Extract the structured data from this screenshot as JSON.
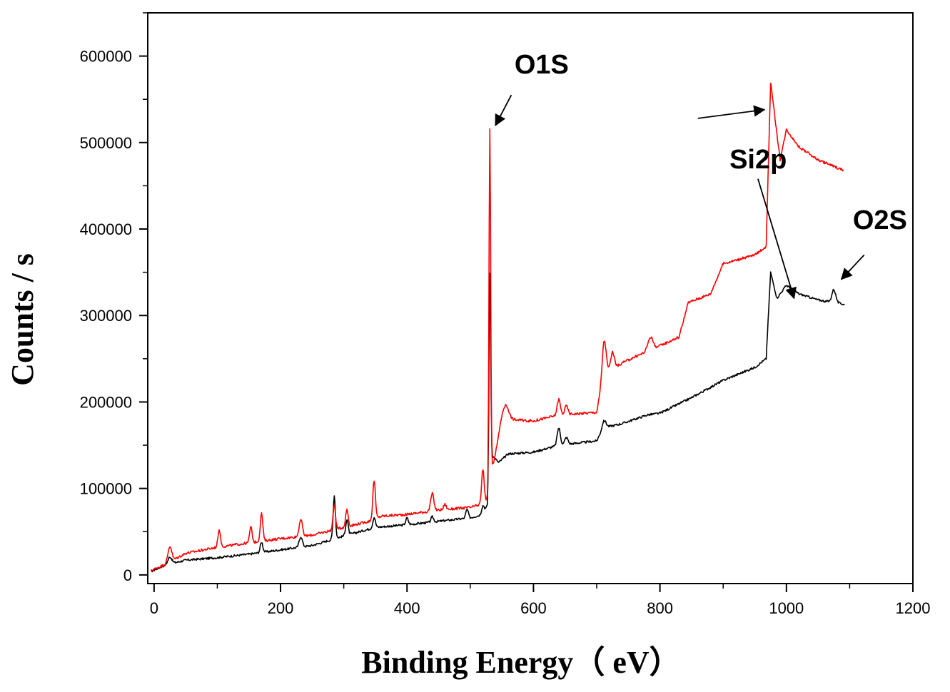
{
  "chart_data": {
    "type": "line",
    "title": "",
    "xlabel": "Binding Energy（  eV）",
    "ylabel": "Counts / s",
    "xlim": [
      -10,
      1200
    ],
    "ylim": [
      -10000,
      650000
    ],
    "xticks": [
      0,
      200,
      400,
      600,
      800,
      1000,
      1200
    ],
    "xtick_labels": [
      "0",
      "200",
      "400",
      "600",
      "800",
      "1000",
      "1200"
    ],
    "yticks": [
      0,
      100000,
      200000,
      300000,
      400000,
      500000,
      600000
    ],
    "ytick_labels": [
      "0",
      "100000",
      "200000",
      "300000",
      "400000",
      "500000",
      "600000"
    ],
    "grid": false,
    "colors": {
      "series_black": "#000000",
      "series_red": "#ff0000",
      "axis": "#000000"
    },
    "series": [
      {
        "name": "black",
        "color": "#000000",
        "baseline": [
          [
            -5,
            4000
          ],
          [
            20,
            12000
          ],
          [
            50,
            17000
          ],
          [
            100,
            20000
          ],
          [
            150,
            24000
          ],
          [
            200,
            29000
          ],
          [
            250,
            34000
          ],
          [
            300,
            45000
          ],
          [
            350,
            55000
          ],
          [
            400,
            58000
          ],
          [
            450,
            62000
          ],
          [
            500,
            66000
          ],
          [
            520,
            70000
          ],
          [
            527,
            80000
          ],
          [
            532,
            140000
          ],
          [
            545,
            130000
          ],
          [
            560,
            140000
          ],
          [
            600,
            142000
          ],
          [
            640,
            150000
          ],
          [
            700,
            155000
          ],
          [
            710,
            170000
          ],
          [
            740,
            175000
          ],
          [
            780,
            185000
          ],
          [
            800,
            187000
          ],
          [
            850,
            205000
          ],
          [
            900,
            225000
          ],
          [
            950,
            240000
          ],
          [
            968,
            250000
          ],
          [
            975,
            350000
          ],
          [
            985,
            320000
          ],
          [
            1000,
            335000
          ],
          [
            1020,
            325000
          ],
          [
            1050,
            318000
          ],
          [
            1092,
            313000
          ]
        ],
        "peaks": [
          [
            25,
            8000,
            3
          ],
          [
            170,
            12000,
            2
          ],
          [
            232,
            12000,
            2.5
          ],
          [
            285,
            50000,
            1.8
          ],
          [
            305,
            18000,
            2
          ],
          [
            348,
            12000,
            2
          ],
          [
            400,
            8000,
            2
          ],
          [
            440,
            6000,
            2
          ],
          [
            495,
            10000,
            2
          ],
          [
            520,
            10000,
            2
          ],
          [
            531,
            220000,
            1.3
          ],
          [
            640,
            20000,
            2.5
          ],
          [
            652,
            8000,
            2.5
          ],
          [
            712,
            8000,
            3
          ],
          [
            1075,
            15000,
            3
          ]
        ],
        "noise": 2500
      },
      {
        "name": "red",
        "color": "#ff0000",
        "baseline": [
          [
            -5,
            5000
          ],
          [
            20,
            13000
          ],
          [
            50,
            25000
          ],
          [
            100,
            32000
          ],
          [
            150,
            37000
          ],
          [
            200,
            42000
          ],
          [
            250,
            46000
          ],
          [
            300,
            55000
          ],
          [
            340,
            62000
          ],
          [
            360,
            68000
          ],
          [
            400,
            70000
          ],
          [
            450,
            75000
          ],
          [
            500,
            78000
          ],
          [
            520,
            82000
          ],
          [
            527,
            88000
          ],
          [
            534,
            120000
          ],
          [
            548,
            170000
          ],
          [
            560,
            180000
          ],
          [
            600,
            178000
          ],
          [
            640,
            185000
          ],
          [
            700,
            188000
          ],
          [
            710,
            230000
          ],
          [
            740,
            245000
          ],
          [
            760,
            252000
          ],
          [
            800,
            265000
          ],
          [
            830,
            275000
          ],
          [
            845,
            315000
          ],
          [
            880,
            325000
          ],
          [
            900,
            360000
          ],
          [
            950,
            370000
          ],
          [
            968,
            380000
          ],
          [
            975,
            570000
          ],
          [
            990,
            480000
          ],
          [
            1000,
            515000
          ],
          [
            1020,
            495000
          ],
          [
            1050,
            480000
          ],
          [
            1090,
            468000
          ]
        ],
        "peaks": [
          [
            25,
            18000,
            3
          ],
          [
            103,
            20000,
            2
          ],
          [
            153,
            18000,
            2
          ],
          [
            170,
            32000,
            2
          ],
          [
            232,
            20000,
            2.5
          ],
          [
            285,
            28000,
            2
          ],
          [
            305,
            20000,
            2
          ],
          [
            348,
            45000,
            2
          ],
          [
            440,
            20000,
            2.5
          ],
          [
            460,
            6000,
            2
          ],
          [
            520,
            40000,
            2
          ],
          [
            531,
            410000,
            1.3
          ],
          [
            555,
            20000,
            5
          ],
          [
            640,
            18000,
            2.5
          ],
          [
            652,
            10000,
            2.5
          ],
          [
            712,
            40000,
            3
          ],
          [
            725,
            20000,
            3
          ],
          [
            785,
            15000,
            4
          ]
        ],
        "noise": 3000
      }
    ],
    "annotations": [
      {
        "text": "O1S",
        "x": 570,
        "y": 580000,
        "arrow_from": [
          565,
          555000
        ],
        "arrow_to": [
          540,
          520000
        ]
      },
      {
        "text": "Si2p",
        "x": 910,
        "y": 470000,
        "arrow_from": [
          860,
          528000
        ],
        "arrow_to": [
          965,
          538000
        ],
        "arrow2_from": [
          955,
          458000
        ],
        "arrow2_to": [
          1012,
          320000
        ]
      },
      {
        "text": "O2S",
        "x": 1105,
        "y": 400000,
        "arrow_from": [
          1123,
          370000
        ],
        "arrow_to": [
          1087,
          342000
        ]
      }
    ]
  }
}
